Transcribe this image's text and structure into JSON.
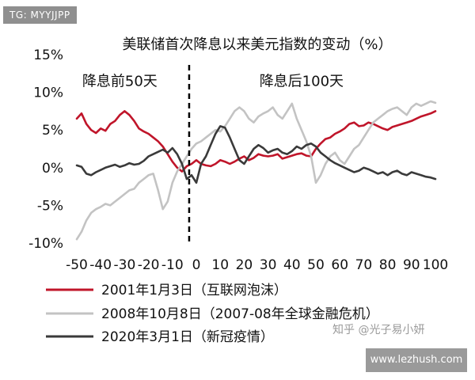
{
  "watermark_tag": "TG: MYYJJPP",
  "footer_url": "www.lezhush.com",
  "watermark_zhihu": "知乎 @光子易小妍",
  "chart_data": {
    "type": "line",
    "title": "美联储首次降息以来美元指数的变动（%）",
    "xlabel": "",
    "ylabel": "",
    "xlim": [
      -50,
      100
    ],
    "ylim": [
      -10,
      15
    ],
    "x_ticks": [
      -50,
      -40,
      -30,
      -20,
      -10,
      0,
      10,
      20,
      30,
      40,
      50,
      60,
      70,
      80,
      90,
      100
    ],
    "y_ticks": [
      {
        "value": 15,
        "label": "15%"
      },
      {
        "value": 10,
        "label": "10%"
      },
      {
        "value": 5,
        "label": "5%"
      },
      {
        "value": 0,
        "label": "0%"
      },
      {
        "value": -5,
        "label": "-5%"
      },
      {
        "value": -10,
        "label": "-10%"
      }
    ],
    "annotations": [
      {
        "text": "降息前50天",
        "x": -32,
        "y": 11.5
      },
      {
        "text": "降息后100天",
        "x": 44,
        "y": 11.5
      }
    ],
    "vline": -3,
    "legend_position": "bottom",
    "series": [
      {
        "name": "2001年1月3日（互联网泡沫）",
        "color": "#c0152a",
        "x": [
          -50,
          -48,
          -46,
          -44,
          -42,
          -40,
          -38,
          -36,
          -34,
          -32,
          -30,
          -28,
          -26,
          -24,
          -22,
          -20,
          -18,
          -16,
          -14,
          -12,
          -10,
          -8,
          -6,
          -4,
          -2,
          0,
          2,
          4,
          6,
          8,
          10,
          12,
          14,
          16,
          18,
          20,
          22,
          24,
          26,
          28,
          30,
          32,
          34,
          36,
          38,
          40,
          42,
          44,
          46,
          48,
          50,
          52,
          54,
          56,
          58,
          60,
          62,
          64,
          66,
          68,
          70,
          72,
          74,
          76,
          78,
          80,
          82,
          84,
          86,
          88,
          90,
          92,
          94,
          96,
          98,
          100
        ],
        "y": [
          6.5,
          7.2,
          5.8,
          5.0,
          4.6,
          5.2,
          4.9,
          5.8,
          6.2,
          7.0,
          7.5,
          7.0,
          6.2,
          5.2,
          4.8,
          4.5,
          4.0,
          3.5,
          2.8,
          1.8,
          0.8,
          0.0,
          -0.5,
          0.2,
          0.5,
          1.0,
          0.5,
          0.3,
          0.2,
          0.5,
          1.0,
          0.8,
          0.5,
          0.8,
          1.2,
          1.5,
          1.0,
          1.3,
          1.8,
          1.6,
          1.5,
          1.6,
          1.8,
          1.2,
          1.4,
          1.6,
          1.8,
          1.9,
          1.6,
          1.5,
          2.5,
          3.2,
          3.8,
          4.0,
          4.5,
          4.8,
          5.2,
          5.8,
          6.0,
          5.5,
          5.6,
          6.0,
          5.8,
          5.5,
          5.2,
          5.0,
          5.4,
          5.6,
          5.8,
          6.0,
          6.2,
          6.5,
          6.8,
          7.0,
          7.2,
          7.5
        ]
      },
      {
        "name": "2008年10月8日（2007-08年全球金融危机）",
        "color": "#c3c3c3",
        "x": [
          -50,
          -48,
          -46,
          -44,
          -42,
          -40,
          -38,
          -36,
          -34,
          -32,
          -30,
          -28,
          -26,
          -24,
          -22,
          -20,
          -18,
          -16,
          -14,
          -12,
          -10,
          -8,
          -6,
          -4,
          -2,
          0,
          2,
          4,
          6,
          8,
          10,
          12,
          14,
          16,
          18,
          20,
          22,
          24,
          26,
          28,
          30,
          32,
          34,
          36,
          38,
          40,
          42,
          44,
          46,
          48,
          50,
          52,
          54,
          56,
          58,
          60,
          62,
          64,
          66,
          68,
          70,
          72,
          74,
          76,
          78,
          80,
          82,
          84,
          86,
          88,
          90,
          92,
          94,
          96,
          98,
          100
        ],
        "y": [
          -9.5,
          -8.5,
          -7.0,
          -6.0,
          -5.5,
          -5.2,
          -4.8,
          -5.0,
          -4.5,
          -4.0,
          -3.5,
          -3.0,
          -2.8,
          -2.0,
          -1.5,
          -1.0,
          -0.8,
          -3.0,
          -5.5,
          -4.5,
          -2.0,
          -0.5,
          0.5,
          1.5,
          2.5,
          3.2,
          3.5,
          4.0,
          4.5,
          5.0,
          4.8,
          5.5,
          6.5,
          7.5,
          8.0,
          7.5,
          6.5,
          6.0,
          6.8,
          7.2,
          7.5,
          8.0,
          7.0,
          6.5,
          7.5,
          8.5,
          6.5,
          5.0,
          3.5,
          1.5,
          -2.0,
          -1.0,
          0.5,
          1.5,
          2.0,
          1.0,
          0.5,
          1.5,
          2.5,
          3.0,
          4.0,
          5.0,
          6.0,
          6.5,
          7.0,
          7.5,
          7.8,
          8.0,
          7.5,
          7.0,
          8.0,
          8.5,
          8.2,
          8.5,
          8.8,
          8.6
        ]
      },
      {
        "name": "2020年3月1日（新冠疫情）",
        "color": "#3a3a3a",
        "x": [
          -50,
          -48,
          -46,
          -44,
          -42,
          -40,
          -38,
          -36,
          -34,
          -32,
          -30,
          -28,
          -26,
          -24,
          -22,
          -20,
          -18,
          -16,
          -14,
          -12,
          -10,
          -8,
          -6,
          -4,
          -2,
          0,
          2,
          4,
          6,
          8,
          10,
          12,
          14,
          16,
          18,
          20,
          22,
          24,
          26,
          28,
          30,
          32,
          34,
          36,
          38,
          40,
          42,
          44,
          46,
          48,
          50,
          52,
          54,
          56,
          58,
          60,
          62,
          64,
          66,
          68,
          70,
          72,
          74,
          76,
          78,
          80,
          82,
          84,
          86,
          88,
          90,
          92,
          94,
          96,
          98,
          100
        ],
        "y": [
          0.3,
          0.1,
          -0.8,
          -1.0,
          -0.6,
          -0.3,
          0.0,
          0.2,
          0.4,
          0.1,
          0.3,
          0.6,
          0.4,
          0.5,
          0.9,
          1.5,
          1.8,
          2.1,
          2.4,
          2.0,
          2.6,
          1.8,
          0.5,
          -1.5,
          -1.0,
          -2.0,
          0.5,
          1.5,
          3.0,
          4.5,
          5.5,
          5.3,
          4.0,
          2.5,
          1.0,
          0.5,
          1.5,
          2.5,
          3.0,
          2.6,
          2.0,
          2.3,
          2.5,
          2.0,
          1.8,
          2.2,
          2.8,
          2.5,
          3.0,
          3.2,
          2.8,
          2.0,
          1.5,
          1.0,
          0.6,
          0.3,
          0.0,
          -0.3,
          -0.6,
          -0.4,
          0.0,
          -0.2,
          -0.5,
          -0.8,
          -0.6,
          -1.0,
          -0.6,
          -0.4,
          -0.8,
          -1.0,
          -0.6,
          -0.8,
          -1.0,
          -1.2,
          -1.3,
          -1.5
        ]
      }
    ]
  }
}
